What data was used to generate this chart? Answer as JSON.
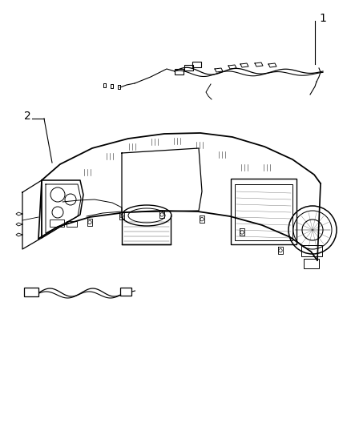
{
  "background_color": "#ffffff",
  "line_color": "#000000",
  "label_1_text": "1",
  "label_2_text": "2",
  "fig_width": 4.38,
  "fig_height": 5.33,
  "dpi": 100
}
